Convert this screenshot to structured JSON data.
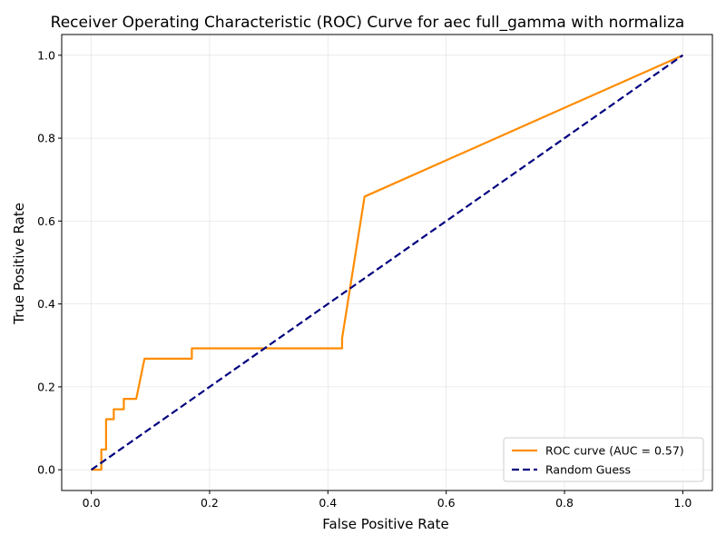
{
  "chart_data": {
    "type": "line",
    "title": "Receiver Operating Characteristic (ROC) Curve for aec full_gamma with normaliza",
    "xlabel": "False Positive Rate",
    "ylabel": "True Positive Rate",
    "xlim": [
      -0.05,
      1.05
    ],
    "ylim": [
      -0.05,
      1.05
    ],
    "xticks": [
      0.0,
      0.2,
      0.4,
      0.6,
      0.8,
      1.0
    ],
    "yticks": [
      0.0,
      0.2,
      0.4,
      0.6,
      0.8,
      1.0
    ],
    "xtick_labels": [
      "0.0",
      "0.2",
      "0.4",
      "0.6",
      "0.8",
      "1.0"
    ],
    "ytick_labels": [
      "0.0",
      "0.2",
      "0.4",
      "0.6",
      "0.8",
      "1.0"
    ],
    "grid": true,
    "legend_position": "bottom-right",
    "series": [
      {
        "name": "ROC curve (AUC = 0.57)",
        "color": "#ff8c00",
        "style": "solid",
        "x": [
          0.0,
          0.017,
          0.017,
          0.025,
          0.025,
          0.038,
          0.038,
          0.055,
          0.055,
          0.076,
          0.09,
          0.17,
          0.17,
          0.424,
          0.424,
          0.462,
          1.0
        ],
        "y": [
          0.0,
          0.0,
          0.049,
          0.049,
          0.122,
          0.122,
          0.146,
          0.146,
          0.171,
          0.171,
          0.268,
          0.268,
          0.293,
          0.293,
          0.317,
          0.659,
          1.0
        ]
      },
      {
        "name": "Random Guess",
        "color": "#000080",
        "style": "dashed",
        "x": [
          0.0,
          1.0
        ],
        "y": [
          0.0,
          1.0
        ]
      }
    ]
  }
}
